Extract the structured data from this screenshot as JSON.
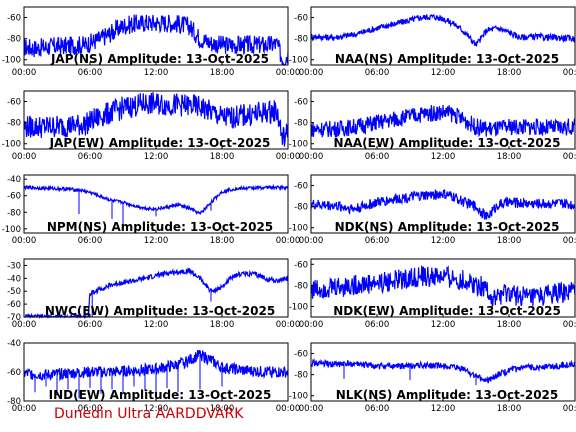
{
  "footer": "Dunedin Ultra AARDDVARK",
  "colors": {
    "trace": "#0000ff",
    "axes": "#000000",
    "background": "#ffffff",
    "footer": "#cc0000"
  },
  "chart_data": [
    {
      "type": "line",
      "title": "JAP(NS) Amplitude: 13-Oct-2025",
      "x_ticks": [
        "00:00",
        "06:00",
        "12:00",
        "18:00",
        "00:00"
      ],
      "y_ticks": [
        -100,
        -80,
        -60
      ],
      "ylim": [
        -105,
        -50
      ],
      "x_hours": [
        0,
        1,
        2,
        3,
        4,
        5,
        5.5,
        6,
        7,
        8,
        9,
        10,
        11,
        12,
        13,
        14,
        15,
        16,
        17,
        18,
        19,
        20,
        21,
        22,
        23,
        23.5,
        24
      ],
      "y": [
        -88,
        -89,
        -88,
        -87,
        -87,
        -86,
        -86,
        -84,
        -80,
        -74,
        -68,
        -66,
        -65,
        -65,
        -65,
        -66,
        -68,
        -80,
        -84,
        -86,
        -86,
        -86,
        -86,
        -86,
        -85,
        -100,
        -95
      ],
      "band": 9,
      "spikes": []
    },
    {
      "type": "line",
      "title": "NAA(NS) Amplitude: 13-Oct-2025",
      "x_ticks": [
        "00:00",
        "06:00",
        "12:00",
        "18:00",
        "00:00"
      ],
      "y_ticks": [
        -100,
        -80,
        -60
      ],
      "ylim": [
        -105,
        -50
      ],
      "x_hours": [
        0,
        2,
        4,
        6,
        8,
        10,
        11,
        12,
        13,
        14,
        15,
        16,
        17,
        18,
        19,
        20,
        22,
        24
      ],
      "y": [
        -78,
        -79,
        -76,
        -70,
        -65,
        -60,
        -59,
        -61,
        -66,
        -74,
        -86,
        -72,
        -70,
        -74,
        -79,
        -78,
        -79,
        -80
      ],
      "band": 3,
      "spikes": []
    },
    {
      "type": "line",
      "title": "JAP(EW) Amplitude: 13-Oct-2025",
      "x_ticks": [
        "00:00",
        "06:00",
        "12:00",
        "18:00",
        "00:00"
      ],
      "y_ticks": [
        -100,
        -80,
        -60
      ],
      "ylim": [
        -105,
        -50
      ],
      "x_hours": [
        0,
        2,
        4,
        5.5,
        6,
        7,
        8,
        9,
        10,
        11,
        12,
        13,
        14,
        15,
        16,
        17,
        18,
        19,
        20,
        21,
        22,
        23,
        23.5,
        24
      ],
      "y": [
        -84,
        -84,
        -83,
        -82,
        -79,
        -74,
        -70,
        -66,
        -64,
        -62,
        -62,
        -63,
        -63,
        -64,
        -65,
        -70,
        -75,
        -75,
        -73,
        -72,
        -70,
        -69,
        -95,
        -90
      ],
      "band": 11,
      "spikes": []
    },
    {
      "type": "line",
      "title": "NAA(EW) Amplitude: 13-Oct-2025",
      "x_hours": [
        0,
        2,
        4,
        6,
        8,
        10,
        12,
        13,
        14,
        15,
        16,
        17,
        18,
        20,
        22,
        24
      ],
      "y": [
        -86,
        -86,
        -84,
        -80,
        -76,
        -72,
        -70,
        -72,
        -78,
        -84,
        -86,
        -86,
        -84,
        -84,
        -85,
        -84
      ],
      "x_ticks": [
        "00:00",
        "06:00",
        "12:00",
        "18:00",
        "00:00"
      ],
      "y_ticks": [
        -100,
        -80,
        -60
      ],
      "ylim": [
        -105,
        -50
      ],
      "band": 8,
      "spikes": []
    },
    {
      "type": "line",
      "title": "NPM(NS) Amplitude: 13-Oct-2025",
      "x_ticks": [
        "00:00",
        "06:00",
        "12:00",
        "18:00",
        "00:00"
      ],
      "y_ticks": [
        -100,
        -80,
        -60,
        -40
      ],
      "ylim": [
        -105,
        -35
      ],
      "x_hours": [
        0,
        2,
        4,
        5,
        6,
        7,
        8,
        9,
        10,
        11,
        12,
        13,
        14,
        15,
        16,
        17,
        18,
        19,
        20,
        22,
        24
      ],
      "y": [
        -50,
        -51,
        -52,
        -53,
        -56,
        -61,
        -66,
        -68,
        -72,
        -75,
        -76,
        -74,
        -71,
        -75,
        -82,
        -68,
        -55,
        -52,
        -51,
        -50,
        -50
      ],
      "band": 2,
      "spikes": [
        [
          5,
          -82
        ],
        [
          8,
          -88
        ],
        [
          9,
          -95
        ],
        [
          12,
          -85
        ],
        [
          17,
          -78
        ]
      ]
    },
    {
      "type": "line",
      "title": "NDK(NS) Amplitude: 13-Oct-2025",
      "x_ticks": [
        "00:00",
        "06:00",
        "12:00",
        "18:00",
        "00:00"
      ],
      "y_ticks": [
        -100,
        -80,
        -60
      ],
      "ylim": [
        -105,
        -50
      ],
      "x_hours": [
        0,
        2,
        4,
        6,
        8,
        10,
        12,
        13,
        14,
        15,
        16,
        17,
        18,
        20,
        22,
        24
      ],
      "y": [
        -78,
        -79,
        -82,
        -76,
        -72,
        -70,
        -68,
        -71,
        -76,
        -80,
        -90,
        -78,
        -76,
        -77,
        -77,
        -78
      ],
      "band": 5,
      "spikes": []
    },
    {
      "type": "line",
      "title": "NWC(EW) Amplitude: 13-Oct-2025",
      "x_ticks": [
        "00:00",
        "06:00",
        "12:00",
        "18:00",
        "00:00"
      ],
      "y_ticks": [
        -70,
        -60,
        -50,
        -40,
        -30
      ],
      "ylim": [
        -70,
        -25
      ],
      "x_hours": [
        0,
        4,
        5,
        5.8,
        6,
        7,
        8,
        9,
        10,
        11,
        12,
        13,
        14,
        15,
        16,
        17,
        18,
        19,
        20,
        21,
        22,
        23,
        24
      ],
      "y": [
        -70,
        -70,
        -70,
        -70,
        -52,
        -48,
        -45,
        -43,
        -42,
        -40,
        -38,
        -36,
        -35,
        -34,
        -40,
        -50,
        -47,
        -38,
        -36,
        -37,
        -40,
        -42,
        -40
      ],
      "band": 2,
      "spikes": [
        [
          5.2,
          -70
        ],
        [
          5.5,
          -70
        ],
        [
          5.9,
          -70
        ],
        [
          6.2,
          -70
        ],
        [
          17,
          -58
        ]
      ]
    },
    {
      "type": "line",
      "title": "NDK(EW) Amplitude: 13-Oct-2025",
      "x_ticks": [
        "00:00",
        "06:00",
        "12:00",
        "18:00",
        "00:00"
      ],
      "y_ticks": [
        -100,
        -80,
        -60
      ],
      "ylim": [
        -110,
        -55
      ],
      "x_hours": [
        0,
        2,
        4,
        6,
        8,
        10,
        12,
        14,
        16,
        16.5,
        17,
        18,
        20,
        22,
        24
      ],
      "y": [
        -84,
        -82,
        -80,
        -78,
        -75,
        -72,
        -72,
        -76,
        -82,
        -96,
        -90,
        -88,
        -92,
        -88,
        -86
      ],
      "band": 10,
      "spikes": []
    },
    {
      "type": "line",
      "title": "IND(EW) Amplitude: 13-Oct-2025",
      "x_ticks": [
        "00:00",
        "06:00",
        "12:00",
        "18:00",
        "00:00"
      ],
      "y_ticks": [
        -80,
        -60,
        -40
      ],
      "ylim": [
        -80,
        -40
      ],
      "x_hours": [
        0,
        2,
        4,
        6,
        8,
        10,
        12,
        14,
        15,
        16,
        17,
        18,
        20,
        22,
        24
      ],
      "y": [
        -61,
        -62,
        -61,
        -60,
        -60,
        -59,
        -58,
        -55,
        -52,
        -48,
        -52,
        -57,
        -59,
        -60,
        -60
      ],
      "band": 4,
      "spikes": [
        [
          1,
          -74
        ],
        [
          2,
          -70
        ],
        [
          3,
          -76
        ],
        [
          4,
          -72
        ],
        [
          5,
          -78
        ],
        [
          6,
          -71
        ],
        [
          7,
          -75
        ],
        [
          8,
          -72
        ],
        [
          9,
          -74
        ],
        [
          10,
          -70
        ],
        [
          11,
          -73
        ],
        [
          12,
          -76
        ],
        [
          13,
          -71
        ],
        [
          14,
          -74
        ],
        [
          16,
          -72
        ],
        [
          18,
          -70
        ]
      ]
    },
    {
      "type": "line",
      "title": "NLK(NS) Amplitude: 13-Oct-2025",
      "x_ticks": [
        "00:00",
        "06:00",
        "12:00",
        "18:00",
        "00:00"
      ],
      "y_ticks": [
        -100,
        -80,
        -60
      ],
      "ylim": [
        -105,
        -50
      ],
      "x_hours": [
        0,
        2,
        4,
        6,
        8,
        10,
        12,
        14,
        15,
        16,
        17,
        18,
        20,
        22,
        24
      ],
      "y": [
        -69,
        -70,
        -70,
        -72,
        -72,
        -71,
        -72,
        -75,
        -82,
        -86,
        -80,
        -76,
        -73,
        -72,
        -70
      ],
      "band": 3,
      "spikes": [
        [
          3,
          -84
        ],
        [
          9,
          -85
        ],
        [
          15,
          -90
        ]
      ]
    }
  ]
}
